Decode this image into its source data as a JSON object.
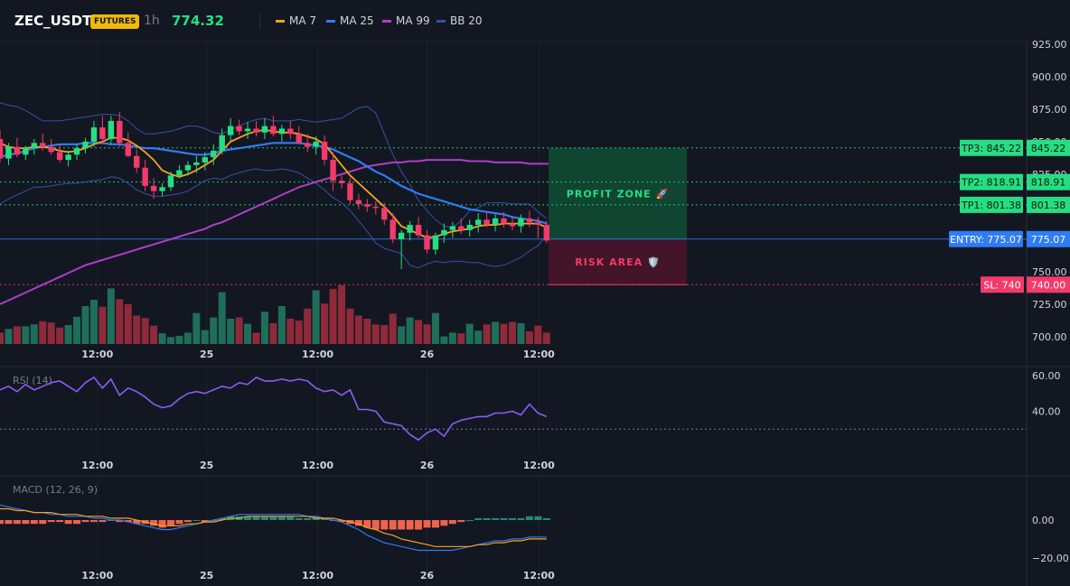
{
  "header": {
    "symbol": "ZEC_USDT",
    "badge": "FUTURES",
    "timeframe": "1h",
    "last_price": "774.32",
    "legend": [
      {
        "label": "MA 7",
        "color": "#f7a21b"
      },
      {
        "label": "MA 25",
        "color": "#2f7cf6"
      },
      {
        "label": "MA 99",
        "color": "#b03ec8"
      },
      {
        "label": "BB 20",
        "color": "#3451a8"
      }
    ]
  },
  "chart_data": {
    "type": "candlestick",
    "x_ticks": [
      "12:00",
      "25",
      "12:00",
      "26",
      "12:00"
    ],
    "y_ticks": [
      "925.00",
      "900.00",
      "875.00",
      "850.00",
      "825.00",
      "800.00",
      "775.00",
      "750.00",
      "725.00",
      "700.00"
    ],
    "ylim": [
      693,
      927
    ],
    "candles": [
      {
        "o": 852,
        "h": 859,
        "l": 834,
        "c": 837
      },
      {
        "o": 837,
        "h": 849,
        "l": 832,
        "c": 846
      },
      {
        "o": 846,
        "h": 853,
        "l": 838,
        "c": 840
      },
      {
        "o": 840,
        "h": 847,
        "l": 836,
        "c": 845
      },
      {
        "o": 845,
        "h": 852,
        "l": 840,
        "c": 849
      },
      {
        "o": 849,
        "h": 856,
        "l": 843,
        "c": 846
      },
      {
        "o": 846,
        "h": 852,
        "l": 840,
        "c": 842
      },
      {
        "o": 842,
        "h": 848,
        "l": 834,
        "c": 836
      },
      {
        "o": 836,
        "h": 843,
        "l": 831,
        "c": 840
      },
      {
        "o": 840,
        "h": 848,
        "l": 836,
        "c": 845
      },
      {
        "o": 845,
        "h": 853,
        "l": 841,
        "c": 850
      },
      {
        "o": 850,
        "h": 866,
        "l": 846,
        "c": 861
      },
      {
        "o": 861,
        "h": 870,
        "l": 848,
        "c": 852
      },
      {
        "o": 852,
        "h": 870,
        "l": 848,
        "c": 866
      },
      {
        "o": 866,
        "h": 873,
        "l": 846,
        "c": 849
      },
      {
        "o": 849,
        "h": 857,
        "l": 838,
        "c": 839
      },
      {
        "o": 839,
        "h": 844,
        "l": 826,
        "c": 830
      },
      {
        "o": 830,
        "h": 836,
        "l": 812,
        "c": 816
      },
      {
        "o": 816,
        "h": 822,
        "l": 806,
        "c": 812
      },
      {
        "o": 812,
        "h": 818,
        "l": 808,
        "c": 815
      },
      {
        "o": 815,
        "h": 827,
        "l": 812,
        "c": 824
      },
      {
        "o": 824,
        "h": 832,
        "l": 822,
        "c": 828
      },
      {
        "o": 828,
        "h": 835,
        "l": 824,
        "c": 832
      },
      {
        "o": 832,
        "h": 839,
        "l": 826,
        "c": 834
      },
      {
        "o": 834,
        "h": 842,
        "l": 828,
        "c": 838
      },
      {
        "o": 838,
        "h": 848,
        "l": 832,
        "c": 843
      },
      {
        "o": 843,
        "h": 860,
        "l": 840,
        "c": 855
      },
      {
        "o": 855,
        "h": 868,
        "l": 850,
        "c": 862
      },
      {
        "o": 862,
        "h": 867,
        "l": 855,
        "c": 858
      },
      {
        "o": 858,
        "h": 865,
        "l": 852,
        "c": 860
      },
      {
        "o": 860,
        "h": 866,
        "l": 854,
        "c": 857
      },
      {
        "o": 857,
        "h": 868,
        "l": 852,
        "c": 862
      },
      {
        "o": 862,
        "h": 870,
        "l": 854,
        "c": 856
      },
      {
        "o": 856,
        "h": 863,
        "l": 850,
        "c": 860
      },
      {
        "o": 860,
        "h": 866,
        "l": 852,
        "c": 856
      },
      {
        "o": 856,
        "h": 862,
        "l": 848,
        "c": 849
      },
      {
        "o": 849,
        "h": 856,
        "l": 842,
        "c": 846
      },
      {
        "o": 846,
        "h": 854,
        "l": 840,
        "c": 850
      },
      {
        "o": 850,
        "h": 855,
        "l": 832,
        "c": 836
      },
      {
        "o": 836,
        "h": 842,
        "l": 812,
        "c": 820
      },
      {
        "o": 820,
        "h": 824,
        "l": 814,
        "c": 818
      },
      {
        "o": 818,
        "h": 822,
        "l": 802,
        "c": 805
      },
      {
        "o": 805,
        "h": 810,
        "l": 798,
        "c": 802
      },
      {
        "o": 802,
        "h": 806,
        "l": 796,
        "c": 800
      },
      {
        "o": 800,
        "h": 804,
        "l": 794,
        "c": 799
      },
      {
        "o": 799,
        "h": 803,
        "l": 786,
        "c": 790
      },
      {
        "o": 790,
        "h": 795,
        "l": 772,
        "c": 775
      },
      {
        "o": 775,
        "h": 782,
        "l": 752,
        "c": 780
      },
      {
        "o": 780,
        "h": 789,
        "l": 774,
        "c": 786
      },
      {
        "o": 786,
        "h": 792,
        "l": 776,
        "c": 778
      },
      {
        "o": 778,
        "h": 782,
        "l": 764,
        "c": 767
      },
      {
        "o": 767,
        "h": 780,
        "l": 763,
        "c": 778
      },
      {
        "o": 778,
        "h": 787,
        "l": 772,
        "c": 782
      },
      {
        "o": 782,
        "h": 788,
        "l": 776,
        "c": 785
      },
      {
        "o": 785,
        "h": 791,
        "l": 779,
        "c": 782
      },
      {
        "o": 782,
        "h": 790,
        "l": 777,
        "c": 786
      },
      {
        "o": 786,
        "h": 795,
        "l": 780,
        "c": 790
      },
      {
        "o": 790,
        "h": 796,
        "l": 784,
        "c": 786
      },
      {
        "o": 786,
        "h": 794,
        "l": 781,
        "c": 791
      },
      {
        "o": 791,
        "h": 796,
        "l": 784,
        "c": 787
      },
      {
        "o": 787,
        "h": 793,
        "l": 782,
        "c": 785
      },
      {
        "o": 785,
        "h": 794,
        "l": 780,
        "c": 791
      },
      {
        "o": 791,
        "h": 797,
        "l": 784,
        "c": 788
      },
      {
        "o": 788,
        "h": 792,
        "l": 776,
        "c": 786
      },
      {
        "o": 786,
        "h": 789,
        "l": 772,
        "c": 774
      }
    ],
    "volume": [
      18,
      24,
      28,
      28,
      31,
      36,
      34,
      26,
      30,
      43,
      60,
      70,
      59,
      88,
      71,
      63,
      45,
      41,
      29,
      17,
      11,
      13,
      18,
      49,
      22,
      42,
      82,
      40,
      42,
      32,
      18,
      51,
      33,
      60,
      40,
      37,
      56,
      85,
      64,
      87,
      93,
      56,
      45,
      40,
      31,
      30,
      48,
      28,
      42,
      38,
      31,
      49,
      12,
      18,
      17,
      32,
      21,
      31,
      35,
      32,
      35,
      33,
      20,
      29,
      18
    ],
    "volume_scale": [
      0,
      100
    ],
    "ma7": [
      849,
      846,
      845,
      845,
      846,
      846,
      845,
      843,
      842,
      843,
      845,
      848,
      850,
      853,
      853,
      851,
      847,
      842,
      836,
      828,
      825,
      823,
      825,
      828,
      832,
      836,
      843,
      850,
      853,
      856,
      858,
      859,
      858,
      857,
      857,
      856,
      854,
      852,
      848,
      840,
      832,
      824,
      818,
      812,
      806,
      800,
      793,
      785,
      782,
      779,
      776,
      777,
      779,
      781,
      782,
      783,
      785,
      786,
      786,
      787,
      787,
      787,
      787,
      787,
      784
    ],
    "ma25": [
      838,
      840,
      841,
      843,
      845,
      846,
      847,
      848,
      848,
      848,
      849,
      849,
      849,
      848,
      848,
      847,
      846,
      845,
      845,
      844,
      843,
      842,
      841,
      840,
      840,
      841,
      843,
      844,
      845,
      846,
      847,
      848,
      849,
      849,
      849,
      849,
      848,
      847,
      846,
      844,
      841,
      838,
      835,
      831,
      827,
      824,
      820,
      816,
      813,
      810,
      808,
      806,
      804,
      802,
      800,
      798,
      797,
      796,
      795,
      794,
      792,
      791,
      790,
      789,
      787
    ],
    "ma99": [
      725,
      728,
      731,
      734,
      737,
      740,
      743,
      746,
      749,
      752,
      755,
      757,
      759,
      761,
      763,
      765,
      767,
      769,
      771,
      773,
      775,
      777,
      779,
      781,
      783,
      786,
      788,
      791,
      794,
      797,
      800,
      803,
      806,
      809,
      812,
      815,
      817,
      819,
      821,
      823,
      825,
      827,
      829,
      831,
      832,
      833,
      834,
      834,
      835,
      835,
      836,
      836,
      836,
      836,
      836,
      835,
      835,
      835,
      834,
      834,
      834,
      834,
      833,
      833,
      833
    ],
    "bb_upper": [
      880,
      878,
      877,
      874,
      870,
      866,
      866,
      866,
      867,
      868,
      869,
      870,
      871,
      871,
      870,
      866,
      860,
      856,
      856,
      857,
      858,
      860,
      862,
      862,
      860,
      857,
      856,
      859,
      862,
      865,
      867,
      868,
      866,
      866,
      866,
      867,
      866,
      865,
      866,
      867,
      868,
      872,
      876,
      877,
      872,
      856,
      840,
      827,
      817,
      805,
      797,
      790,
      785,
      784,
      789,
      797,
      799,
      803,
      803,
      803,
      802,
      802,
      802,
      796,
      791
    ],
    "bb_lower": [
      802,
      806,
      809,
      812,
      815,
      815,
      816,
      817,
      818,
      818,
      819,
      820,
      821,
      823,
      822,
      818,
      813,
      810,
      808,
      808,
      809,
      810,
      812,
      816,
      820,
      822,
      821,
      824,
      826,
      828,
      829,
      828,
      828,
      829,
      828,
      826,
      822,
      818,
      813,
      807,
      803,
      797,
      789,
      781,
      772,
      768,
      766,
      764,
      755,
      753,
      756,
      758,
      757,
      758,
      758,
      757,
      757,
      755,
      754,
      755,
      758,
      761,
      766,
      770,
      778
    ],
    "levels": [
      {
        "name": "tp3",
        "price": 845.22,
        "label": "TP3: 845.22",
        "axis": "845.22",
        "color": "#26de81",
        "text": "#0b1a12"
      },
      {
        "name": "tp2",
        "price": 818.91,
        "label": "TP2: 818.91",
        "axis": "818.91",
        "color": "#26de81",
        "text": "#0b1a12"
      },
      {
        "name": "tp1",
        "price": 801.38,
        "label": "TP1: 801.38",
        "axis": "801.38",
        "color": "#26de81",
        "text": "#0b1a12"
      },
      {
        "name": "entry",
        "price": 775.07,
        "label": "ENTRY: 775.07",
        "axis": "775.07",
        "color": "#2f7cf6",
        "text": "#ffffff"
      },
      {
        "name": "sl",
        "price": 740.0,
        "label": "SL: 740",
        "axis": "740.00",
        "color": "#f23b6a",
        "text": "#ffffff"
      }
    ],
    "zones": [
      {
        "name": "profit-zone",
        "label": "PROFIT ZONE 🚀",
        "from": 775.07,
        "to": 845.22,
        "fill": "#0f4a33",
        "text": "#26de81"
      },
      {
        "name": "risk-area",
        "label": "RISK AREA 🛡️",
        "from": 740.0,
        "to": 775.07,
        "fill": "#4a1429",
        "text": "#f23b6a"
      }
    ],
    "rsi": {
      "label": "RSI (14)",
      "ticks": [
        "60.00",
        "40.00"
      ],
      "ylim": [
        16,
        64
      ],
      "guide": 30,
      "values": [
        52,
        54,
        51,
        55,
        52,
        54,
        56,
        57,
        54,
        51,
        56,
        59,
        53,
        58,
        49,
        53,
        51,
        48,
        44,
        42,
        43,
        47,
        50,
        51,
        50,
        52,
        54,
        53,
        56,
        55,
        59,
        57,
        57,
        58,
        57,
        58,
        57,
        53,
        51,
        52,
        49,
        52,
        41,
        41,
        40,
        34,
        33,
        32,
        27,
        24,
        28,
        30,
        26,
        33,
        35,
        36,
        37,
        37,
        39,
        39,
        40,
        38,
        44,
        39,
        37
      ]
    },
    "macd": {
      "label": "MACD (12, 26, 9)",
      "ticks": [
        "0.00",
        "−20.00"
      ],
      "ylim": [
        -22,
        22
      ],
      "hist": [
        -2,
        -2,
        -2,
        -2,
        -2,
        -2,
        -1,
        -1,
        -2,
        -2,
        -1,
        -1,
        -1,
        0,
        -1,
        -1,
        -2,
        -2,
        -3,
        -4,
        -3,
        -2,
        -1,
        0,
        -1,
        0,
        1,
        2,
        2,
        2,
        2,
        2,
        2,
        2,
        2,
        1,
        1,
        2,
        1,
        0,
        -1,
        -2,
        -3,
        -4,
        -5,
        -5,
        -5,
        -5,
        -5,
        -5,
        -4,
        -4,
        -3,
        -2,
        -1,
        0,
        1,
        1,
        1,
        1,
        1,
        1,
        2,
        2,
        1
      ],
      "macd_line": [
        8,
        7,
        6,
        5,
        4,
        4,
        3,
        3,
        2,
        2,
        2,
        1,
        1,
        0,
        0,
        -1,
        -2,
        -3,
        -4,
        -5,
        -5,
        -4,
        -3,
        -2,
        -1,
        0,
        1,
        2,
        3,
        3,
        3,
        3,
        3,
        3,
        3,
        3,
        2,
        2,
        1,
        0,
        -1,
        -3,
        -5,
        -8,
        -10,
        -12,
        -13,
        -14,
        -15,
        -16,
        -16,
        -16,
        -16,
        -16,
        -15,
        -14,
        -13,
        -12,
        -11,
        -11,
        -10,
        -10,
        -9,
        -9,
        -9
      ],
      "signal_line": [
        6,
        6,
        5,
        5,
        4,
        4,
        4,
        3,
        3,
        3,
        2,
        2,
        2,
        1,
        1,
        1,
        0,
        -1,
        -2,
        -3,
        -3,
        -3,
        -2,
        -2,
        -1,
        -1,
        0,
        1,
        1,
        2,
        2,
        2,
        2,
        2,
        2,
        2,
        2,
        1,
        1,
        1,
        0,
        -1,
        -2,
        -4,
        -5,
        -7,
        -8,
        -10,
        -11,
        -12,
        -13,
        -14,
        -14,
        -14,
        -14,
        -14,
        -13,
        -13,
        -12,
        -12,
        -11,
        -11,
        -10,
        -10,
        -10
      ]
    },
    "colors": {
      "up": "#26de81",
      "down": "#f23b6a",
      "up_vol": "#1f6e5a",
      "down_vol": "#8e2a3a",
      "grid": "#1e222d",
      "axis_text": "#d1d4dc",
      "rsi": "#8b5cf6",
      "macd": "#2f7cf6",
      "signal": "#f7a21b"
    }
  }
}
